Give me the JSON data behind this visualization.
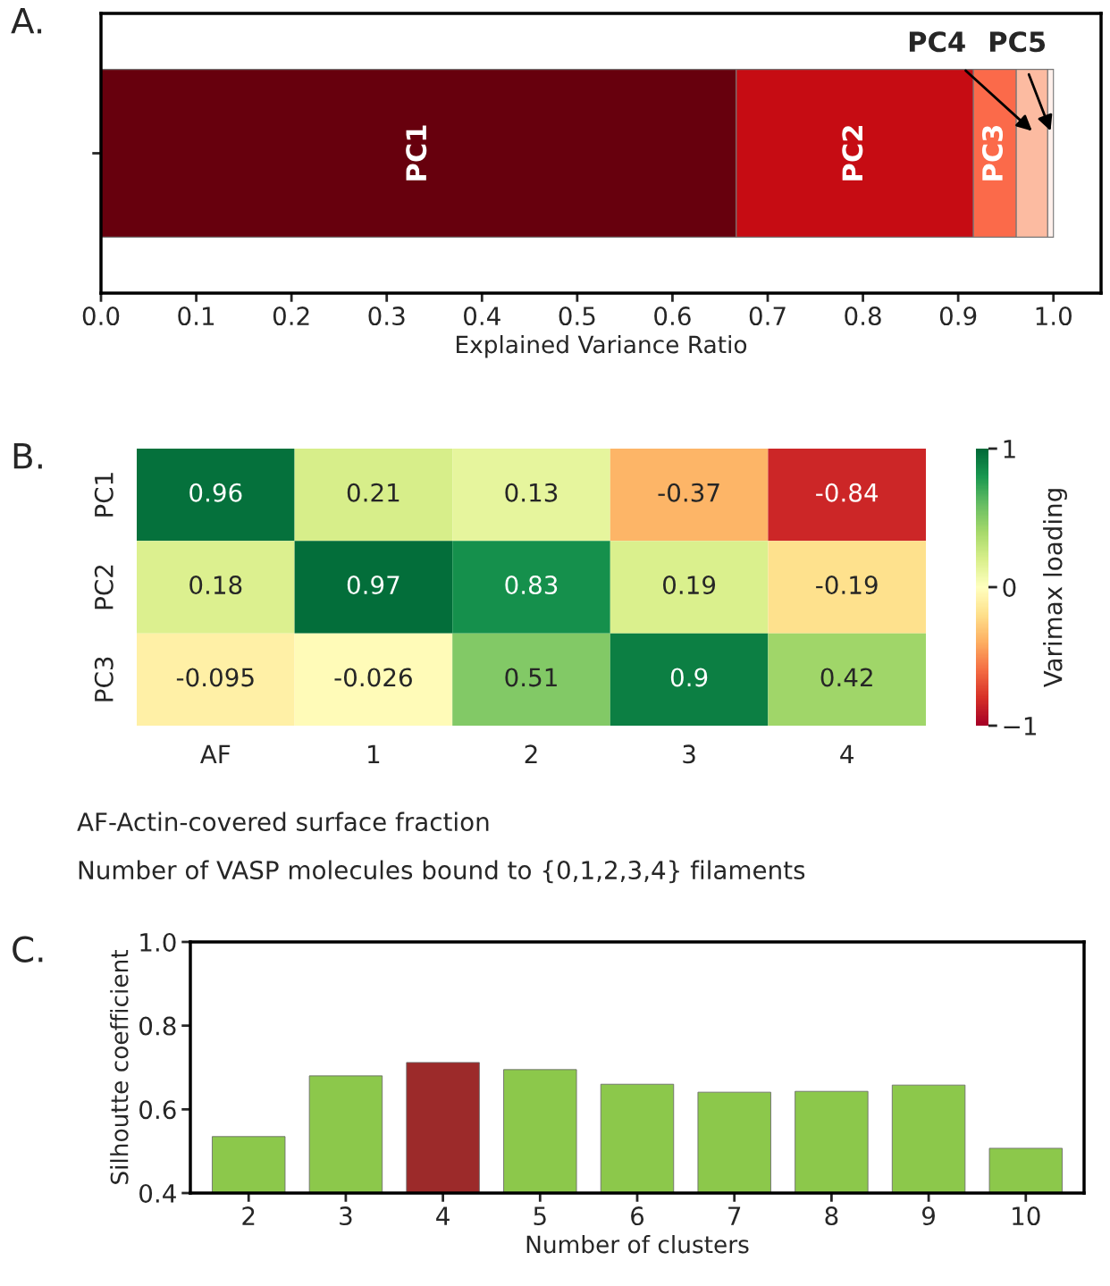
{
  "chart_data": [
    {
      "type": "bar",
      "title": "A.",
      "orientation": "horizontal",
      "stacked": true,
      "categories": [
        null
      ],
      "xlabel": "Explained Variance Ratio",
      "xlim": [
        0,
        1.05
      ],
      "xticks": [
        {
          "value": 0,
          "label": "0.0"
        },
        0.1,
        0.2,
        0.3,
        0.4,
        0.5,
        0.6,
        0.7,
        0.8,
        0.9,
        {
          "value": 1,
          "label": "1.0"
        }
      ],
      "series": [
        {
          "name": "PC1",
          "color": "#67000d",
          "values": [
            0.667
          ]
        },
        {
          "name": "PC2",
          "color": "#c60c13",
          "values": [
            0.249
          ]
        },
        {
          "name": "PC3",
          "color": "#fb6a4a",
          "values": [
            0.045
          ]
        },
        {
          "color": "#fcbba1",
          "values": [
            0.033
          ]
        },
        {
          "color": "#fff0eb",
          "values": [
            0.006
          ]
        }
      ],
      "annotations": [
        "PC4",
        "PC5"
      ],
      "grid": false,
      "legend": false
    },
    {
      "type": "heatmap",
      "title": "B.",
      "categories": [
        "AF",
        "1",
        "2",
        "3",
        "4"
      ],
      "y_categories": [
        "PC1",
        "PC2",
        "PC3"
      ],
      "cells": [
        [
          0.96,
          0.21,
          0.13,
          -0.37,
          -0.84
        ],
        [
          0.18,
          0.97,
          0.83,
          0.19,
          -0.19
        ],
        [
          -0.095,
          -0.026,
          0.51,
          0.9,
          0.42
        ]
      ],
      "data_labels": true,
      "clim": [
        -1,
        1
      ],
      "cticks": [
        1,
        0,
        {
          "value": -1,
          "label": "−1"
        }
      ],
      "clabel": "Varimax loading",
      "annotations": [
        "AF-Actin-covered surface fraction",
        "Number of VASP molecules bound to {0,1,2,3,4} filaments"
      ]
    },
    {
      "type": "bar",
      "title": "C.",
      "categories": [
        "2",
        "3",
        "4",
        "5",
        "6",
        "7",
        "8",
        "9",
        "10"
      ],
      "values": [
        0.535,
        0.68,
        0.712,
        0.695,
        0.66,
        0.641,
        0.643,
        0.658,
        0.507
      ],
      "colors": [
        "#8cc84b",
        "#8cc84b",
        "#9c2a2a",
        "#8cc84b",
        "#8cc84b",
        "#8cc84b",
        "#8cc84b",
        "#8cc84b",
        "#8cc84b"
      ],
      "xlabel": "Number of clusters",
      "ylabel": "Silhoutte coefficient",
      "ylim": [
        0.4,
        1.0
      ],
      "yticks": [
        0.4,
        0.6,
        0.8,
        {
          "value": 1.0,
          "label": "1.0"
        }
      ],
      "grid": false
    }
  ]
}
